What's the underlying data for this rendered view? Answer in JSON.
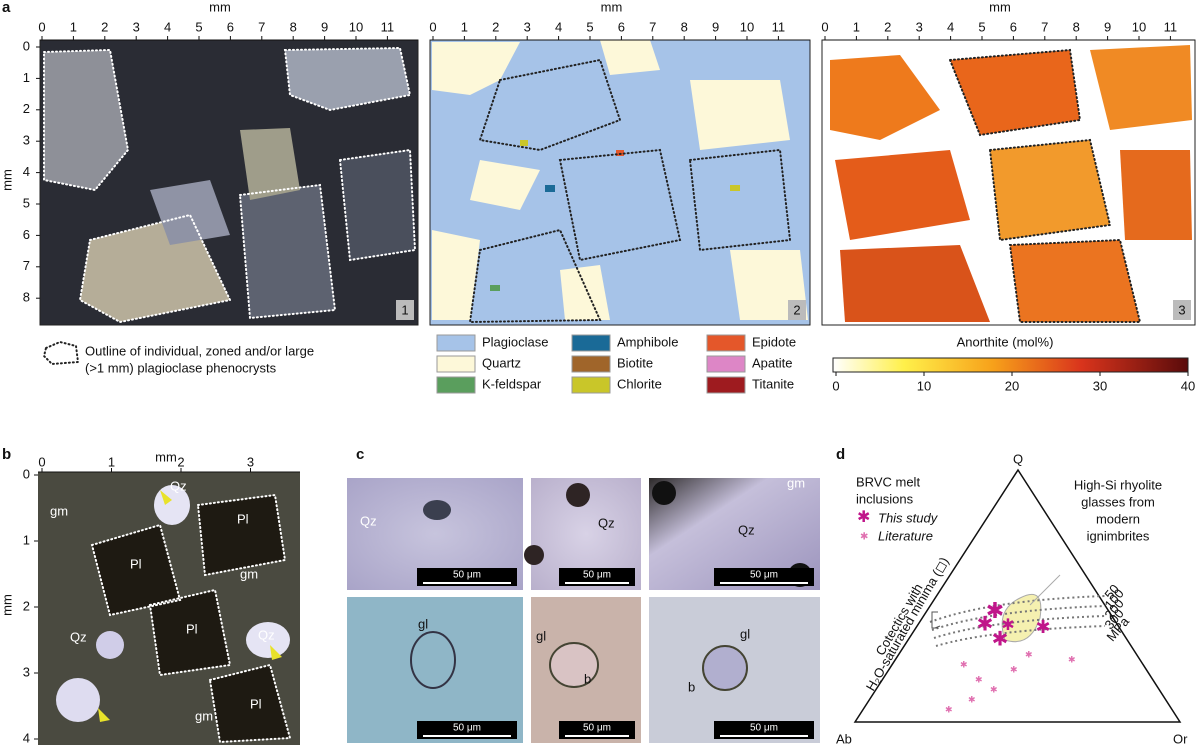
{
  "panel_a": {
    "label": "a",
    "x_label": "mm",
    "y_label": "mm",
    "x_ticks": [
      0,
      1,
      2,
      3,
      4,
      5,
      6,
      7,
      8,
      9,
      10,
      11
    ],
    "y_ticks": [
      0,
      1,
      2,
      3,
      4,
      5,
      6,
      7,
      8
    ],
    "map_numbers": [
      "1",
      "2",
      "3"
    ],
    "outline_legend_lines": [
      "Outline of individual, zoned and/or large",
      "(>1 mm) plagioclase phenocrysts"
    ],
    "minerals": [
      {
        "name": "Plagioclase",
        "color": "#a6c3e8"
      },
      {
        "name": "Quartz",
        "color": "#fdf8d9"
      },
      {
        "name": "K-feldspar",
        "color": "#5a9e5d"
      },
      {
        "name": "Amphibole",
        "color": "#1a6a97"
      },
      {
        "name": "Biotite",
        "color": "#a0652a"
      },
      {
        "name": "Chlorite",
        "color": "#c9c629"
      },
      {
        "name": "Epidote",
        "color": "#e4572a"
      },
      {
        "name": "Apatite",
        "color": "#dd86c6"
      },
      {
        "name": "Titanite",
        "color": "#9e1b1f"
      }
    ],
    "colorbar": {
      "label": "Anorthite (mol%)",
      "ticks": [
        0,
        10,
        20,
        30,
        40
      ]
    }
  },
  "panel_b": {
    "label": "b",
    "x_label": "mm",
    "y_label": "mm",
    "x_ticks": [
      0,
      1,
      2,
      3
    ],
    "y_ticks": [
      0,
      1,
      2,
      3,
      4
    ],
    "labels": [
      "gm",
      "Qz",
      "Pl",
      "Pl",
      "gm",
      "Qz",
      "Qz",
      "Pl",
      "Pl",
      "gm"
    ]
  },
  "panel_c": {
    "label": "c",
    "images": [
      {
        "labels": [
          "Qz"
        ],
        "scale": "50 μm"
      },
      {
        "labels": [
          "Qz"
        ],
        "scale": "50 μm"
      },
      {
        "labels": [
          "gm",
          "Qz"
        ],
        "scale": "50 μm"
      },
      {
        "labels": [
          "gl"
        ],
        "scale": "50 μm"
      },
      {
        "labels": [
          "gl",
          "b"
        ],
        "scale": "50 μm"
      },
      {
        "labels": [
          "gl",
          "b"
        ],
        "scale": "50 μm"
      }
    ]
  },
  "panel_d": {
    "label": "d",
    "legend_title_lines": [
      "BRVC melt",
      "inclusions"
    ],
    "series": [
      "This study",
      "Literature"
    ],
    "vertices": [
      "Q",
      "Ab",
      "Or"
    ],
    "annotation_lines": [
      "High-Si rhyolite",
      "glasses from",
      "modern",
      "ignimbrites"
    ],
    "cotectic_lines": [
      "Cotectics with",
      "H₂O-saturated minima (◻)"
    ],
    "pressures": [
      "50",
      "100",
      "200",
      "300"
    ],
    "pressure_unit": "MPa"
  }
}
